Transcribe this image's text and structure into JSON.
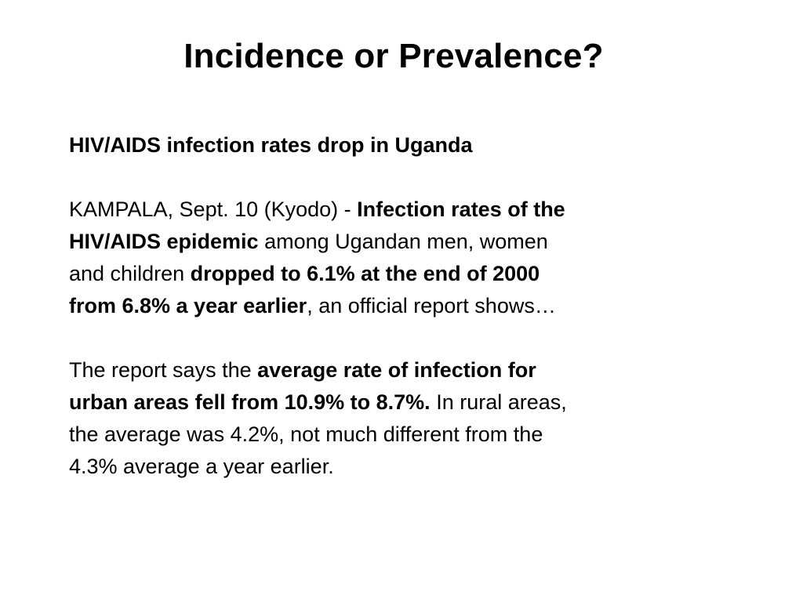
{
  "slide": {
    "title": "Incidence or Prevalence?",
    "headline": "HIV/AIDS infection rates drop in Uganda",
    "paragraph1": {
      "line1_plain": "KAMPALA, Sept. 10 (Kyodo) - ",
      "line1_bold": "Infection rates of the",
      "line2_bold": "HIV/AIDS epidemic",
      "line2_plain": " among Ugandan men, women",
      "line3_plain": "and children ",
      "line3_bold": "dropped to 6.1% at the end of 2000",
      "line4_bold": "from 6.8% a year earlier",
      "line4_plain": ", an official report shows…"
    },
    "paragraph2": {
      "line1_plain": "The report says the ",
      "line1_bold": "average rate of infection for",
      "line2_bold": "urban areas fell from 10.9% to 8.7%.",
      "line2_plain": " In rural areas,",
      "line3_plain": "the average was 4.2%, not much different from the",
      "line4_plain": "4.3% average a year earlier."
    }
  }
}
